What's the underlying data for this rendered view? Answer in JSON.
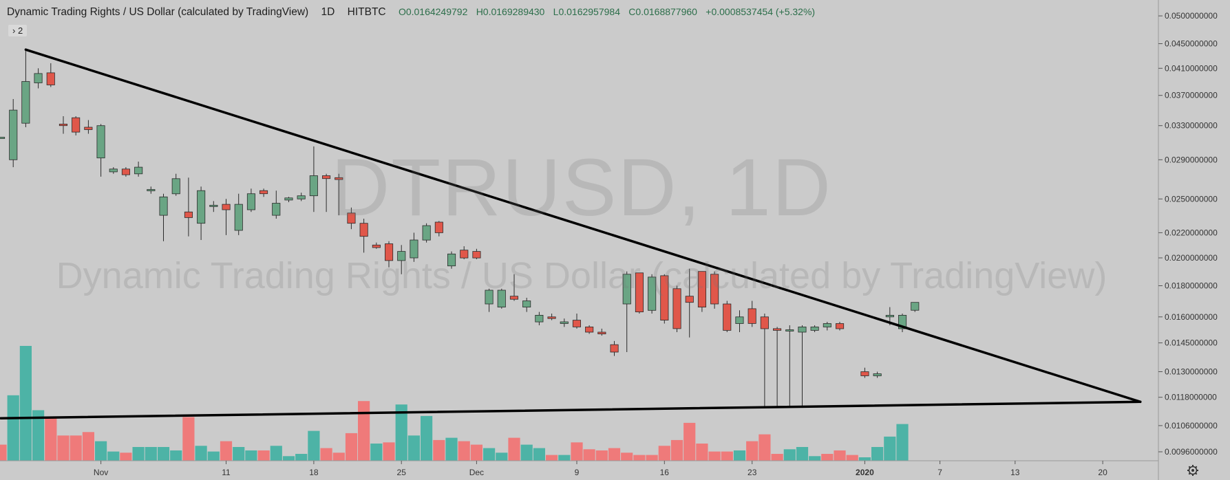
{
  "header": {
    "symbol": "Dynamic Trading Rights / US Dollar (calculated by TradingView)",
    "interval": "1D",
    "exchange": "HITBTC",
    "open": "O0.0164249792",
    "high": "H0.0169289430",
    "low": "L0.0162957984",
    "close": "C0.0168877960",
    "change": "+0.0008537454 (+5.32%)"
  },
  "badge": {
    "label": "› 2"
  },
  "watermark": {
    "ticker": "DTRUSD, 1D",
    "name": "Dynamic Trading Rights / US Dollar (calculated by TradingView)"
  },
  "colors": {
    "up": "#6aa584",
    "down": "#e0574a",
    "vol_up": "#4db3a6",
    "vol_down": "#ef7a7a",
    "line": "#000000",
    "bg": "#cbcbcb"
  },
  "icons": {
    "settings": "gear-icon"
  },
  "chart_data": {
    "type": "candlestick",
    "scale": "log",
    "y_axis_labels": [
      "0.0500000000",
      "0.0450000000",
      "0.0410000000",
      "0.0370000000",
      "0.0330000000",
      "0.0290000000",
      "0.0250000000",
      "0.0220000000",
      "0.0200000000",
      "0.0180000000",
      "0.0160000000",
      "0.0145000000",
      "0.0130000000",
      "0.0118000000",
      "0.0106000000",
      "0.0096000000"
    ],
    "x_axis_labels": [
      {
        "date": "2019-11-01",
        "label": "Nov"
      },
      {
        "date": "2019-11-11",
        "label": "11"
      },
      {
        "date": "2019-11-18",
        "label": "18"
      },
      {
        "date": "2019-11-25",
        "label": "25"
      },
      {
        "date": "2019-12-01",
        "label": "Dec"
      },
      {
        "date": "2019-12-09",
        "label": "9"
      },
      {
        "date": "2019-12-16",
        "label": "16"
      },
      {
        "date": "2019-12-23",
        "label": "23"
      },
      {
        "date": "2020-01-01",
        "label": "2020",
        "bold": true
      },
      {
        "date": "2020-01-07",
        "label": "7"
      },
      {
        "date": "2020-01-13",
        "label": "13"
      },
      {
        "date": "2020-01-20",
        "label": "20"
      }
    ],
    "date_range": [
      "2019-10-24",
      "2020-01-24"
    ],
    "price_range": [
      0.0095,
      0.052
    ],
    "candles": [
      {
        "date": "2019-10-24",
        "o": 0.0315,
        "h": 0.0315,
        "l": 0.0315,
        "c": 0.0315
      },
      {
        "date": "2019-10-25",
        "o": 0.029,
        "h": 0.0365,
        "l": 0.0282,
        "c": 0.035
      },
      {
        "date": "2019-10-26",
        "o": 0.0333,
        "h": 0.0442,
        "l": 0.0328,
        "c": 0.039
      },
      {
        "date": "2019-10-27",
        "o": 0.0388,
        "h": 0.041,
        "l": 0.038,
        "c": 0.0402
      },
      {
        "date": "2019-10-28",
        "o": 0.0403,
        "h": 0.0418,
        "l": 0.0382,
        "c": 0.0385
      },
      {
        "date": "2019-10-29",
        "o": 0.0332,
        "h": 0.0342,
        "l": 0.032,
        "c": 0.033
      },
      {
        "date": "2019-10-30",
        "o": 0.034,
        "h": 0.0342,
        "l": 0.0318,
        "c": 0.0322
      },
      {
        "date": "2019-10-31",
        "o": 0.0328,
        "h": 0.0337,
        "l": 0.032,
        "c": 0.0325
      },
      {
        "date": "2019-11-01",
        "o": 0.0292,
        "h": 0.0332,
        "l": 0.0272,
        "c": 0.033
      },
      {
        "date": "2019-11-02",
        "o": 0.0277,
        "h": 0.0282,
        "l": 0.0275,
        "c": 0.028
      },
      {
        "date": "2019-11-03",
        "o": 0.028,
        "h": 0.0282,
        "l": 0.0272,
        "c": 0.0274
      },
      {
        "date": "2019-11-04",
        "o": 0.0275,
        "h": 0.0288,
        "l": 0.0272,
        "c": 0.0282
      },
      {
        "date": "2019-11-05",
        "o": 0.0258,
        "h": 0.0262,
        "l": 0.0255,
        "c": 0.0259
      },
      {
        "date": "2019-11-06",
        "o": 0.0235,
        "h": 0.0255,
        "l": 0.0213,
        "c": 0.0252
      },
      {
        "date": "2019-11-07",
        "o": 0.0255,
        "h": 0.0275,
        "l": 0.0253,
        "c": 0.027
      },
      {
        "date": "2019-11-08",
        "o": 0.0238,
        "h": 0.0271,
        "l": 0.0217,
        "c": 0.0233
      },
      {
        "date": "2019-11-09",
        "o": 0.0228,
        "h": 0.0262,
        "l": 0.0214,
        "c": 0.0258
      },
      {
        "date": "2019-11-10",
        "o": 0.0243,
        "h": 0.0248,
        "l": 0.0238,
        "c": 0.0244
      },
      {
        "date": "2019-11-11",
        "o": 0.0245,
        "h": 0.025,
        "l": 0.0218,
        "c": 0.024
      },
      {
        "date": "2019-11-12",
        "o": 0.0222,
        "h": 0.0255,
        "l": 0.0218,
        "c": 0.0245
      },
      {
        "date": "2019-11-13",
        "o": 0.024,
        "h": 0.026,
        "l": 0.0238,
        "c": 0.0255
      },
      {
        "date": "2019-11-14",
        "o": 0.0258,
        "h": 0.026,
        "l": 0.0252,
        "c": 0.0255
      },
      {
        "date": "2019-11-15",
        "o": 0.0235,
        "h": 0.0258,
        "l": 0.0232,
        "c": 0.0246
      },
      {
        "date": "2019-11-16",
        "o": 0.0249,
        "h": 0.0252,
        "l": 0.0247,
        "c": 0.0251
      },
      {
        "date": "2019-11-17",
        "o": 0.025,
        "h": 0.0256,
        "l": 0.0248,
        "c": 0.0253
      },
      {
        "date": "2019-11-18",
        "o": 0.0253,
        "h": 0.0305,
        "l": 0.0238,
        "c": 0.0273
      },
      {
        "date": "2019-11-19",
        "o": 0.0273,
        "h": 0.0275,
        "l": 0.0238,
        "c": 0.027
      },
      {
        "date": "2019-11-20",
        "o": 0.0271,
        "h": 0.0275,
        "l": 0.0235,
        "c": 0.0269
      },
      {
        "date": "2019-11-21",
        "o": 0.0237,
        "h": 0.0242,
        "l": 0.0223,
        "c": 0.0228
      },
      {
        "date": "2019-11-22",
        "o": 0.0228,
        "h": 0.0232,
        "l": 0.0204,
        "c": 0.0217
      },
      {
        "date": "2019-11-23",
        "o": 0.021,
        "h": 0.0212,
        "l": 0.0207,
        "c": 0.0208
      },
      {
        "date": "2019-11-24",
        "o": 0.0211,
        "h": 0.0213,
        "l": 0.0193,
        "c": 0.0198
      },
      {
        "date": "2019-11-25",
        "o": 0.0198,
        "h": 0.021,
        "l": 0.0188,
        "c": 0.0205
      },
      {
        "date": "2019-11-26",
        "o": 0.02,
        "h": 0.022,
        "l": 0.0197,
        "c": 0.0214
      },
      {
        "date": "2019-11-27",
        "o": 0.0214,
        "h": 0.0228,
        "l": 0.0212,
        "c": 0.0226
      },
      {
        "date": "2019-11-28",
        "o": 0.0229,
        "h": 0.023,
        "l": 0.0217,
        "c": 0.022
      },
      {
        "date": "2019-11-29",
        "o": 0.0194,
        "h": 0.0205,
        "l": 0.0192,
        "c": 0.0203
      },
      {
        "date": "2019-11-30",
        "o": 0.0206,
        "h": 0.0209,
        "l": 0.0199,
        "c": 0.02
      },
      {
        "date": "2019-12-01",
        "o": 0.0205,
        "h": 0.0207,
        "l": 0.0199,
        "c": 0.02
      },
      {
        "date": "2019-12-02",
        "o": 0.0168,
        "h": 0.0178,
        "l": 0.0163,
        "c": 0.0177
      },
      {
        "date": "2019-12-03",
        "o": 0.0166,
        "h": 0.0178,
        "l": 0.0165,
        "c": 0.0177
      },
      {
        "date": "2019-12-04",
        "o": 0.0173,
        "h": 0.0188,
        "l": 0.017,
        "c": 0.0171
      },
      {
        "date": "2019-12-05",
        "o": 0.0166,
        "h": 0.0172,
        "l": 0.0163,
        "c": 0.017
      },
      {
        "date": "2019-12-06",
        "o": 0.0157,
        "h": 0.0163,
        "l": 0.0155,
        "c": 0.0161
      },
      {
        "date": "2019-12-07",
        "o": 0.016,
        "h": 0.0162,
        "l": 0.0158,
        "c": 0.0159
      },
      {
        "date": "2019-12-08",
        "o": 0.0156,
        "h": 0.0159,
        "l": 0.0154,
        "c": 0.0157
      },
      {
        "date": "2019-12-09",
        "o": 0.0158,
        "h": 0.0162,
        "l": 0.0153,
        "c": 0.0154
      },
      {
        "date": "2019-12-10",
        "o": 0.0154,
        "h": 0.0155,
        "l": 0.015,
        "c": 0.0151
      },
      {
        "date": "2019-12-11",
        "o": 0.0151,
        "h": 0.0153,
        "l": 0.0149,
        "c": 0.015
      },
      {
        "date": "2019-12-12",
        "o": 0.0144,
        "h": 0.0146,
        "l": 0.0138,
        "c": 0.014
      },
      {
        "date": "2019-12-13",
        "o": 0.0168,
        "h": 0.019,
        "l": 0.014,
        "c": 0.0188
      },
      {
        "date": "2019-12-14",
        "o": 0.0189,
        "h": 0.0189,
        "l": 0.0162,
        "c": 0.0163
      },
      {
        "date": "2019-12-15",
        "o": 0.0164,
        "h": 0.0188,
        "l": 0.0162,
        "c": 0.0186
      },
      {
        "date": "2019-12-16",
        "o": 0.0187,
        "h": 0.0188,
        "l": 0.0156,
        "c": 0.0158
      },
      {
        "date": "2019-12-17",
        "o": 0.0178,
        "h": 0.018,
        "l": 0.0151,
        "c": 0.0153
      },
      {
        "date": "2019-12-18",
        "o": 0.0173,
        "h": 0.0192,
        "l": 0.0148,
        "c": 0.0169
      },
      {
        "date": "2019-12-19",
        "o": 0.019,
        "h": 0.019,
        "l": 0.0163,
        "c": 0.0166
      },
      {
        "date": "2019-12-20",
        "o": 0.0188,
        "h": 0.019,
        "l": 0.0165,
        "c": 0.0168
      },
      {
        "date": "2019-12-21",
        "o": 0.0168,
        "h": 0.017,
        "l": 0.0151,
        "c": 0.0152
      },
      {
        "date": "2019-12-22",
        "o": 0.0156,
        "h": 0.0164,
        "l": 0.0151,
        "c": 0.016
      },
      {
        "date": "2019-12-23",
        "o": 0.0165,
        "h": 0.017,
        "l": 0.0154,
        "c": 0.0156
      },
      {
        "date": "2019-12-24",
        "o": 0.016,
        "h": 0.0162,
        "l": 0.0114,
        "c": 0.0153
      },
      {
        "date": "2019-12-25",
        "o": 0.0153,
        "h": 0.0154,
        "l": 0.0114,
        "c": 0.0152
      },
      {
        "date": "2019-12-26",
        "o": 0.0152,
        "h": 0.0155,
        "l": 0.0114,
        "c": 0.0152
      },
      {
        "date": "2019-12-27",
        "o": 0.0151,
        "h": 0.0155,
        "l": 0.0114,
        "c": 0.0154
      },
      {
        "date": "2019-12-28",
        "o": 0.0152,
        "h": 0.0155,
        "l": 0.0151,
        "c": 0.0154
      },
      {
        "date": "2019-12-29",
        "o": 0.0154,
        "h": 0.0157,
        "l": 0.0152,
        "c": 0.0156
      },
      {
        "date": "2019-12-30",
        "o": 0.0156,
        "h": 0.0157,
        "l": 0.0152,
        "c": 0.0153
      },
      {
        "date": "2020-01-01",
        "o": 0.013,
        "h": 0.0132,
        "l": 0.0127,
        "c": 0.0128
      },
      {
        "date": "2020-01-02",
        "o": 0.0128,
        "h": 0.013,
        "l": 0.0127,
        "c": 0.0129
      },
      {
        "date": "2020-01-03",
        "o": 0.016,
        "h": 0.0166,
        "l": 0.0155,
        "c": 0.0161
      },
      {
        "date": "2020-01-04",
        "o": 0.0153,
        "h": 0.0162,
        "l": 0.0151,
        "c": 0.0161
      },
      {
        "date": "2020-01-05",
        "o": 0.0164,
        "h": 0.0169,
        "l": 0.0163,
        "c": 0.0169
      }
    ],
    "volume_max": 100,
    "volume": [
      {
        "date": "2019-10-24",
        "v": 14,
        "up": false
      },
      {
        "date": "2019-10-25",
        "v": 57,
        "up": true
      },
      {
        "date": "2019-10-26",
        "v": 100,
        "up": true
      },
      {
        "date": "2019-10-27",
        "v": 44,
        "up": true
      },
      {
        "date": "2019-10-28",
        "v": 37,
        "up": false
      },
      {
        "date": "2019-10-29",
        "v": 22,
        "up": false
      },
      {
        "date": "2019-10-30",
        "v": 22,
        "up": false
      },
      {
        "date": "2019-10-31",
        "v": 25,
        "up": false
      },
      {
        "date": "2019-11-01",
        "v": 17,
        "up": true
      },
      {
        "date": "2019-11-02",
        "v": 8,
        "up": true
      },
      {
        "date": "2019-11-03",
        "v": 7,
        "up": false
      },
      {
        "date": "2019-11-04",
        "v": 12,
        "up": true
      },
      {
        "date": "2019-11-05",
        "v": 12,
        "up": true
      },
      {
        "date": "2019-11-06",
        "v": 12,
        "up": true
      },
      {
        "date": "2019-11-07",
        "v": 9,
        "up": true
      },
      {
        "date": "2019-11-08",
        "v": 38,
        "up": false
      },
      {
        "date": "2019-11-09",
        "v": 13,
        "up": true
      },
      {
        "date": "2019-11-10",
        "v": 8,
        "up": true
      },
      {
        "date": "2019-11-11",
        "v": 17,
        "up": false
      },
      {
        "date": "2019-11-12",
        "v": 12,
        "up": true
      },
      {
        "date": "2019-11-13",
        "v": 9,
        "up": true
      },
      {
        "date": "2019-11-14",
        "v": 9,
        "up": false
      },
      {
        "date": "2019-11-15",
        "v": 13,
        "up": true
      },
      {
        "date": "2019-11-16",
        "v": 4,
        "up": true
      },
      {
        "date": "2019-11-17",
        "v": 6,
        "up": true
      },
      {
        "date": "2019-11-18",
        "v": 26,
        "up": true
      },
      {
        "date": "2019-11-19",
        "v": 11,
        "up": false
      },
      {
        "date": "2019-11-20",
        "v": 7,
        "up": false
      },
      {
        "date": "2019-11-21",
        "v": 24,
        "up": false
      },
      {
        "date": "2019-11-22",
        "v": 52,
        "up": false
      },
      {
        "date": "2019-11-23",
        "v": 15,
        "up": true
      },
      {
        "date": "2019-11-24",
        "v": 16,
        "up": false
      },
      {
        "date": "2019-11-25",
        "v": 49,
        "up": true
      },
      {
        "date": "2019-11-26",
        "v": 22,
        "up": true
      },
      {
        "date": "2019-11-27",
        "v": 39,
        "up": true
      },
      {
        "date": "2019-11-28",
        "v": 18,
        "up": false
      },
      {
        "date": "2019-11-29",
        "v": 20,
        "up": true
      },
      {
        "date": "2019-11-30",
        "v": 17,
        "up": false
      },
      {
        "date": "2019-12-01",
        "v": 14,
        "up": false
      },
      {
        "date": "2019-12-02",
        "v": 11,
        "up": true
      },
      {
        "date": "2019-12-03",
        "v": 7,
        "up": true
      },
      {
        "date": "2019-12-04",
        "v": 20,
        "up": false
      },
      {
        "date": "2019-12-05",
        "v": 14,
        "up": true
      },
      {
        "date": "2019-12-06",
        "v": 11,
        "up": true
      },
      {
        "date": "2019-12-07",
        "v": 5,
        "up": false
      },
      {
        "date": "2019-12-08",
        "v": 5,
        "up": true
      },
      {
        "date": "2019-12-09",
        "v": 16,
        "up": false
      },
      {
        "date": "2019-12-10",
        "v": 10,
        "up": false
      },
      {
        "date": "2019-12-11",
        "v": 9,
        "up": false
      },
      {
        "date": "2019-12-12",
        "v": 11,
        "up": false
      },
      {
        "date": "2019-12-13",
        "v": 7,
        "up": false
      },
      {
        "date": "2019-12-14",
        "v": 5,
        "up": false
      },
      {
        "date": "2019-12-15",
        "v": 5,
        "up": false
      },
      {
        "date": "2019-12-16",
        "v": 13,
        "up": false
      },
      {
        "date": "2019-12-17",
        "v": 18,
        "up": false
      },
      {
        "date": "2019-12-18",
        "v": 33,
        "up": false
      },
      {
        "date": "2019-12-19",
        "v": 15,
        "up": false
      },
      {
        "date": "2019-12-20",
        "v": 8,
        "up": false
      },
      {
        "date": "2019-12-21",
        "v": 8,
        "up": false
      },
      {
        "date": "2019-12-22",
        "v": 9,
        "up": true
      },
      {
        "date": "2019-12-23",
        "v": 17,
        "up": false
      },
      {
        "date": "2019-12-24",
        "v": 23,
        "up": false
      },
      {
        "date": "2019-12-25",
        "v": 6,
        "up": false
      },
      {
        "date": "2019-12-26",
        "v": 10,
        "up": true
      },
      {
        "date": "2019-12-27",
        "v": 12,
        "up": true
      },
      {
        "date": "2019-12-28",
        "v": 4,
        "up": true
      },
      {
        "date": "2019-12-29",
        "v": 6,
        "up": false
      },
      {
        "date": "2019-12-30",
        "v": 9,
        "up": false
      },
      {
        "date": "2019-12-31",
        "v": 5,
        "up": false
      },
      {
        "date": "2020-01-01",
        "v": 3,
        "up": true
      },
      {
        "date": "2020-01-02",
        "v": 12,
        "up": true
      },
      {
        "date": "2020-01-03",
        "v": 21,
        "up": true
      },
      {
        "date": "2020-01-04",
        "v": 32,
        "up": true
      }
    ],
    "trendlines": [
      {
        "name": "descending-resistance",
        "from": {
          "date": "2019-10-26",
          "price": 0.044
        },
        "to": {
          "date": "2020-01-23",
          "price": 0.0116
        }
      },
      {
        "name": "ascending-support",
        "from": {
          "date": "2019-10-24",
          "price": 0.0109
        },
        "to": {
          "date": "2020-01-23",
          "price": 0.0116
        }
      }
    ]
  }
}
